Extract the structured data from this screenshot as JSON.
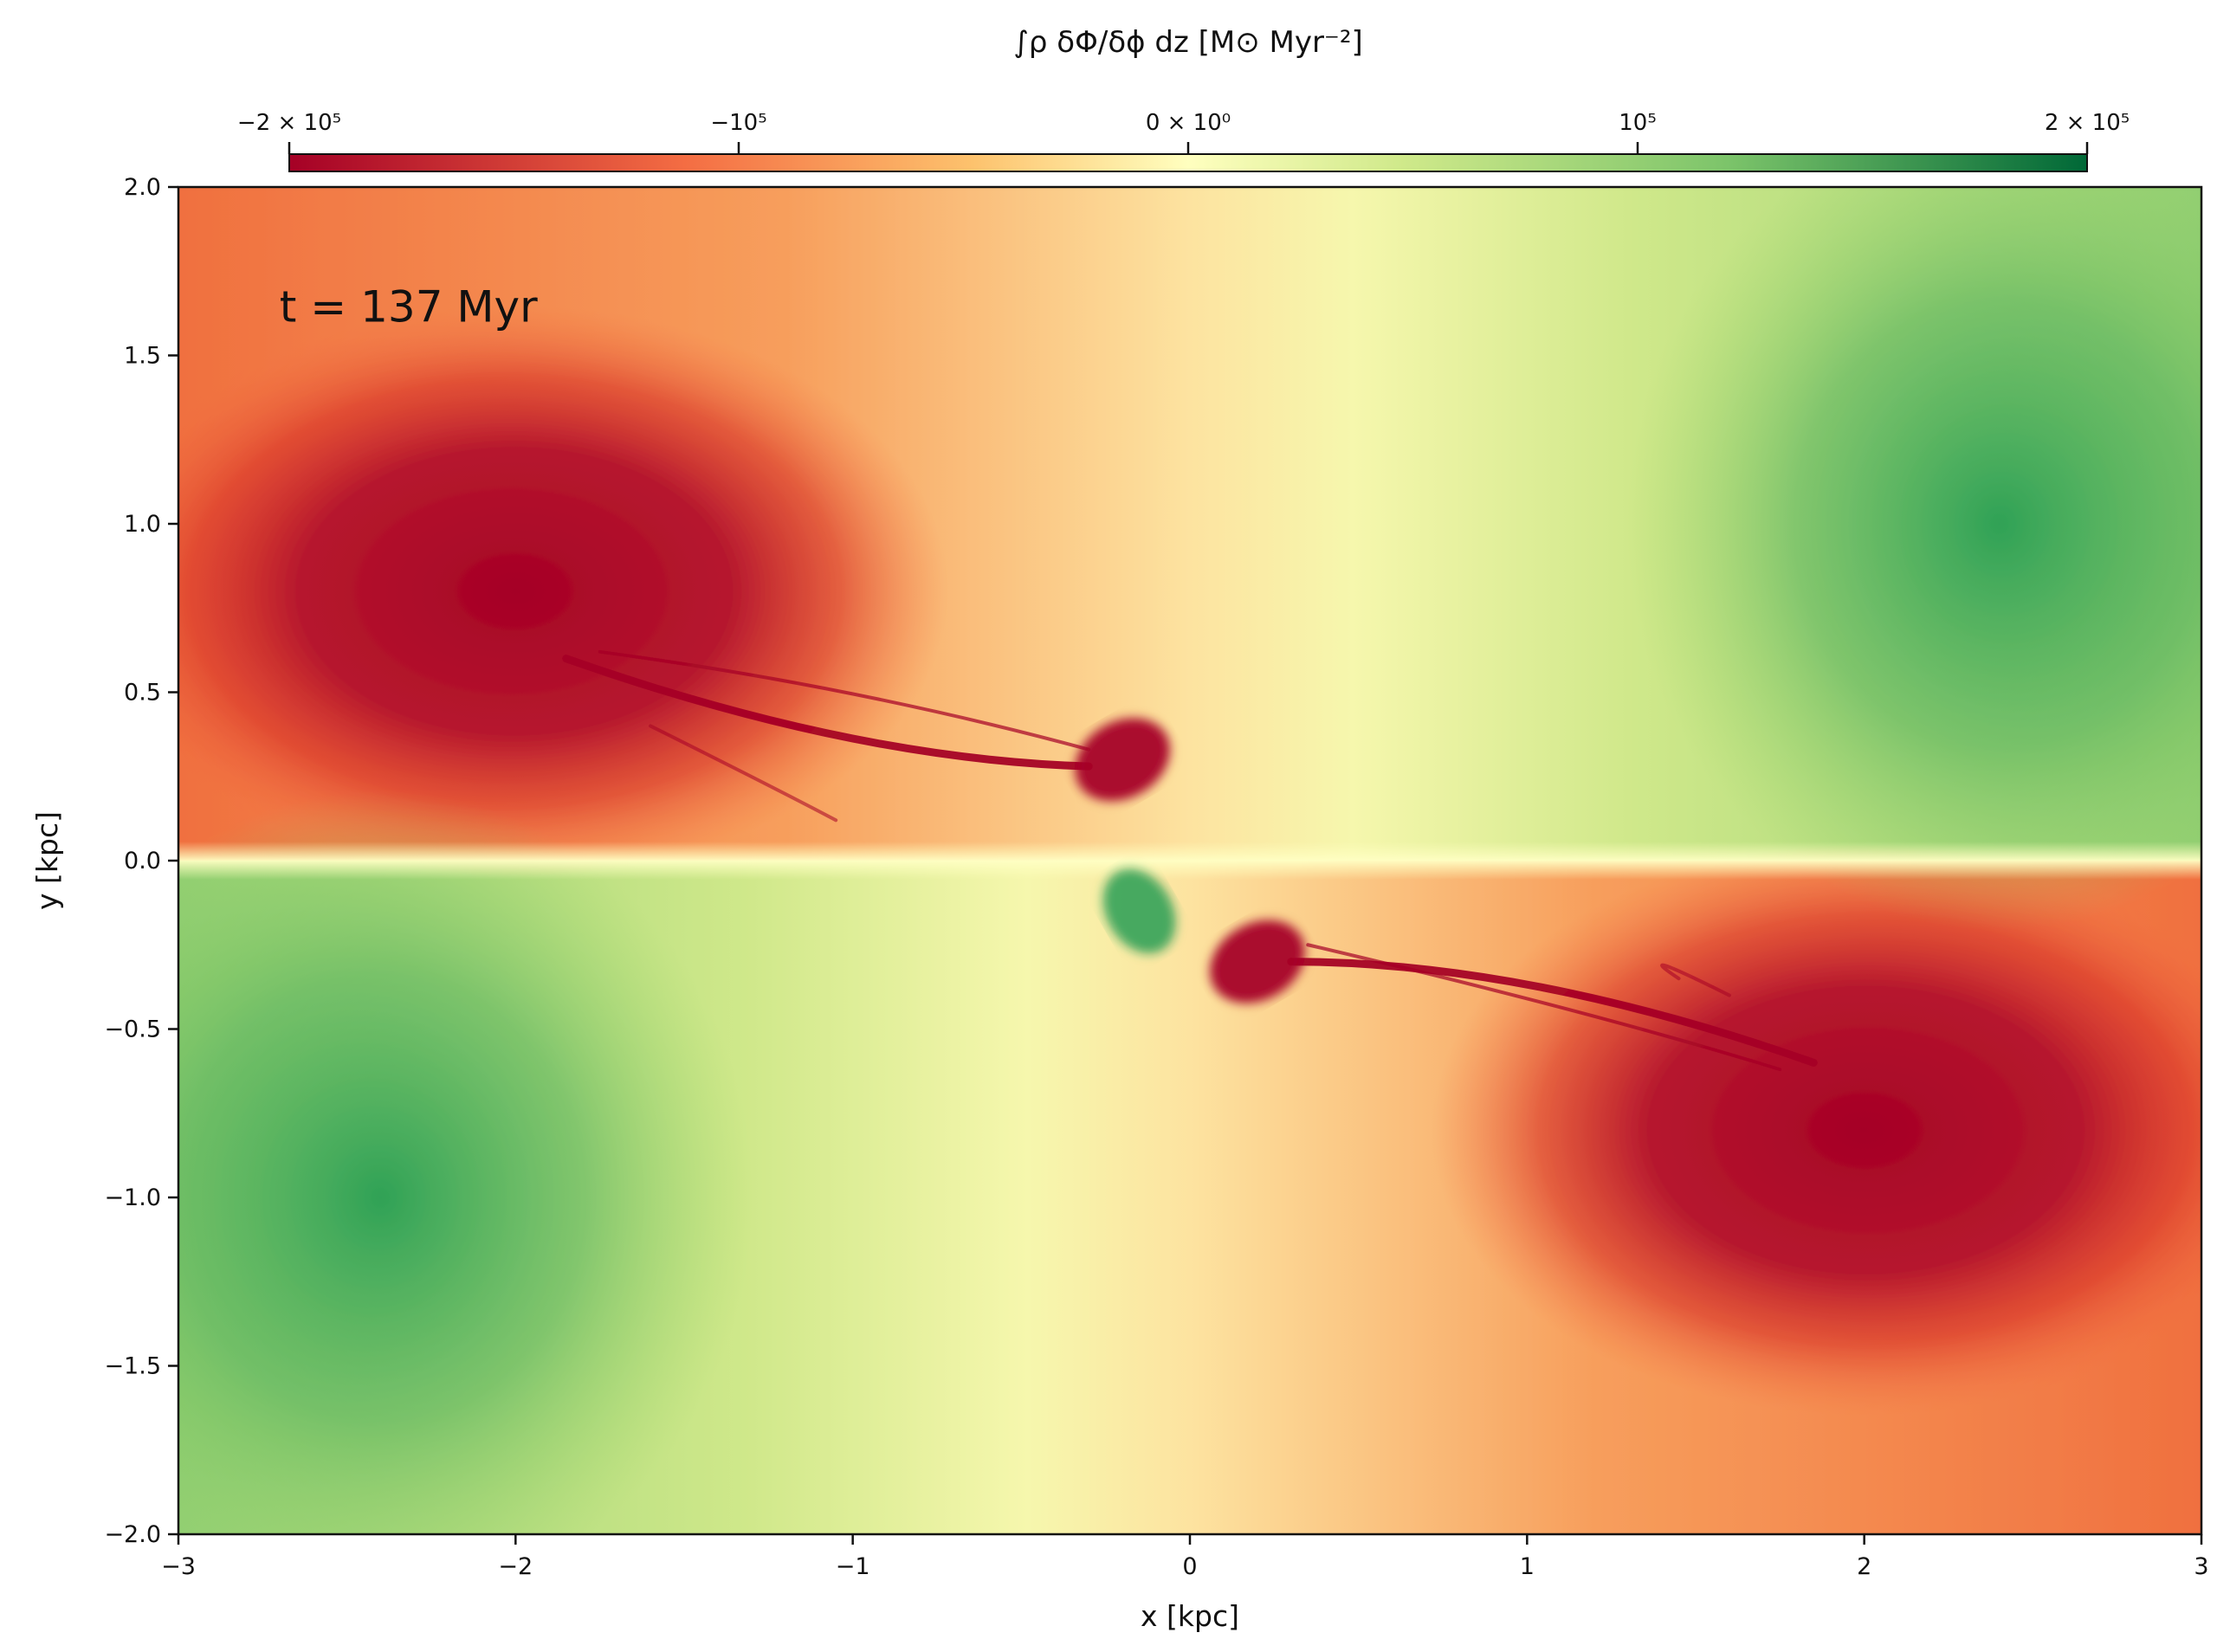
{
  "chart_data": {
    "type": "heatmap",
    "title": "",
    "xlabel": "x [kpc]",
    "ylabel": "y [kpc]",
    "xlim": [
      -3,
      3
    ],
    "ylim": [
      -2,
      2
    ],
    "grid": false,
    "x_ticks": [
      -3,
      -2,
      -1,
      0,
      1,
      2,
      3
    ],
    "x_tick_labels": [
      "−3",
      "−2",
      "−1",
      "0",
      "1",
      "2",
      "3"
    ],
    "y_ticks": [
      2.0,
      1.5,
      1.0,
      0.5,
      0.0,
      -0.5,
      -1.0,
      -1.5,
      -2.0
    ],
    "y_tick_labels": [
      "2.0",
      "1.5",
      "1.0",
      "0.5",
      "0.0",
      "−0.5",
      "−1.0",
      "−1.5",
      "−2.0"
    ],
    "annotation": "t = 137 Myr",
    "colorbar": {
      "label": "∫ρ δΦ/δϕ dz [M⊙ Myr⁻²]",
      "placement": "top",
      "colormap": "RdYlGn",
      "vmin": -200000,
      "vmax": 200000,
      "ticks": [
        -200000,
        -100000,
        0,
        100000,
        200000
      ],
      "tick_labels": [
        "−2 × 10⁵",
        "−10⁵",
        "0 × 10⁰",
        "10⁵",
        "2 × 10⁵"
      ],
      "colors": [
        "#a50026",
        "#f46d43",
        "#fee08b",
        "#ffffbf",
        "#d9ef8b",
        "#66bd63",
        "#006837"
      ]
    },
    "features": [
      {
        "region": "upper-left lobe",
        "x": -2.0,
        "y": 0.8,
        "sign": "negative"
      },
      {
        "region": "lower-right lobe",
        "x": 2.0,
        "y": -0.8,
        "sign": "negative"
      },
      {
        "region": "upper-right",
        "x": 2.4,
        "y": 1.0,
        "sign": "positive"
      },
      {
        "region": "lower-left",
        "x": -2.4,
        "y": -1.0,
        "sign": "positive"
      },
      {
        "region": "central bar (upper)",
        "x": -0.2,
        "y": 0.3,
        "sign": "negative"
      },
      {
        "region": "central bar (lower)",
        "x": 0.2,
        "y": -0.3,
        "sign": "negative"
      },
      {
        "region": "central positive patch",
        "x": -0.15,
        "y": -0.15,
        "sign": "positive"
      }
    ]
  }
}
